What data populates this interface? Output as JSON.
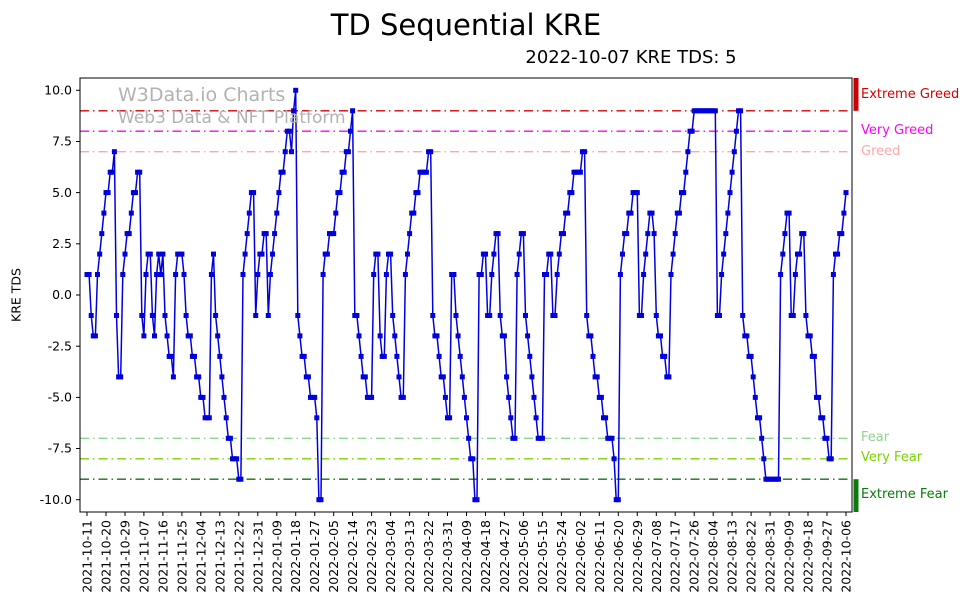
{
  "chart_data": {
    "type": "line",
    "title": "TD Sequential KRE",
    "subtitle": "2022-10-07 KRE TDS: 5",
    "xlabel": "",
    "ylabel": "KRE TDS",
    "grid": false,
    "legend": "none",
    "watermarks": [
      "W3Data.io Charts",
      "Web3 Data & NFT Platform"
    ],
    "ylim": [
      -10.6,
      10.6
    ],
    "y_ticks": [
      10.0,
      7.5,
      5.0,
      2.5,
      0.0,
      -2.5,
      -5.0,
      -7.5,
      -10.0
    ],
    "x_start": "2021-10-11",
    "x_unit": "days",
    "x_tick_interval_days": 9,
    "x_tick_labels": [
      "2021-10-11",
      "2021-10-20",
      "2021-10-29",
      "2021-11-07",
      "2021-11-16",
      "2021-11-25",
      "2021-12-04",
      "2021-12-13",
      "2021-12-22",
      "2021-12-31",
      "2022-01-09",
      "2022-01-18",
      "2022-01-27",
      "2022-02-05",
      "2022-02-14",
      "2022-02-23",
      "2022-03-04",
      "2022-03-13",
      "2022-03-22",
      "2022-03-31",
      "2022-04-09",
      "2022-04-18",
      "2022-04-27",
      "2022-05-06",
      "2022-05-15",
      "2022-05-24",
      "2022-06-02",
      "2022-06-11",
      "2022-06-20",
      "2022-06-29",
      "2022-07-08",
      "2022-07-17",
      "2022-07-26",
      "2022-08-04",
      "2022-08-13",
      "2022-08-22",
      "2022-08-31",
      "2022-09-09",
      "2022-09-18",
      "2022-09-27",
      "2022-10-06"
    ],
    "reference_lines": [
      {
        "label": "Extreme Greed",
        "y": 9,
        "color": "#d60000",
        "style": "dashdot"
      },
      {
        "label": "Very Greed",
        "y": 8,
        "color": "#ff00ff",
        "style": "dashdot"
      },
      {
        "label": "Greed",
        "y": 7,
        "color": "#ffa8a8",
        "style": "dashdot"
      },
      {
        "label": "Fear",
        "y": -7,
        "color": "#8ed88e",
        "style": "dashdot"
      },
      {
        "label": "Very Fear",
        "y": -8,
        "color": "#78d400",
        "style": "dashdot"
      },
      {
        "label": "Extreme Fear",
        "y": -9,
        "color": "#0a7a0a",
        "style": "dashdot"
      }
    ],
    "zone_bars": [
      {
        "name": "extreme-greed-bar",
        "color": "#cc0000",
        "from": 9,
        "to": 10.6
      },
      {
        "name": "extreme-fear-bar",
        "color": "#0a7a0a",
        "from": -10.6,
        "to": -9
      }
    ],
    "series": [
      {
        "name": "KRE TDS",
        "color": "#0000dd",
        "marker": "square",
        "values": [
          1,
          1,
          -1,
          -2,
          -2,
          1,
          2,
          3,
          4,
          5,
          5,
          6,
          6,
          7,
          -1,
          -4,
          -4,
          1,
          2,
          3,
          3,
          4,
          5,
          5,
          6,
          6,
          -1,
          -2,
          1,
          2,
          2,
          -1,
          -2,
          1,
          2,
          1,
          2,
          -1,
          -2,
          -3,
          -3,
          -4,
          1,
          2,
          2,
          2,
          1,
          -1,
          -2,
          -2,
          -3,
          -3,
          -4,
          -4,
          -5,
          -5,
          -6,
          -6,
          -6,
          1,
          2,
          -1,
          -2,
          -3,
          -4,
          -5,
          -6,
          -7,
          -7,
          -8,
          -8,
          -8,
          -9,
          -9,
          1,
          2,
          3,
          4,
          5,
          5,
          -1,
          1,
          2,
          2,
          3,
          3,
          -1,
          1,
          2,
          3,
          4,
          5,
          6,
          6,
          7,
          8,
          8,
          7,
          9,
          10,
          -1,
          -2,
          -3,
          -3,
          -4,
          -4,
          -5,
          -5,
          -5,
          -6,
          -10,
          -10,
          1,
          2,
          2,
          3,
          3,
          3,
          4,
          5,
          5,
          6,
          6,
          7,
          7,
          8,
          9,
          -1,
          -1,
          -2,
          -3,
          -4,
          -4,
          -5,
          -5,
          -5,
          1,
          2,
          2,
          -2,
          -3,
          -3,
          1,
          2,
          2,
          -1,
          -2,
          -3,
          -4,
          -5,
          -5,
          1,
          2,
          3,
          4,
          4,
          5,
          5,
          6,
          6,
          6,
          6,
          7,
          7,
          -1,
          -2,
          -2,
          -3,
          -4,
          -4,
          -5,
          -6,
          -6,
          1,
          1,
          -1,
          -2,
          -3,
          -4,
          -5,
          -6,
          -7,
          -8,
          -8,
          -10,
          -10,
          1,
          1,
          2,
          2,
          -1,
          -1,
          1,
          2,
          3,
          3,
          -1,
          -2,
          -2,
          -4,
          -5,
          -6,
          -7,
          -7,
          1,
          2,
          3,
          3,
          -1,
          -2,
          -3,
          -4,
          -5,
          -6,
          -7,
          -7,
          -7,
          1,
          1,
          2,
          2,
          -1,
          -1,
          1,
          2,
          3,
          3,
          4,
          4,
          5,
          5,
          6,
          6,
          6,
          6,
          7,
          7,
          -1,
          -2,
          -2,
          -3,
          -4,
          -4,
          -5,
          -5,
          -6,
          -6,
          -7,
          -7,
          -7,
          -8,
          -10,
          -10,
          1,
          2,
          3,
          3,
          4,
          4,
          5,
          5,
          5,
          -1,
          -1,
          1,
          2,
          3,
          4,
          4,
          3,
          -1,
          -2,
          -2,
          -3,
          -3,
          -4,
          -4,
          1,
          2,
          3,
          4,
          4,
          5,
          5,
          6,
          7,
          8,
          8,
          9,
          9,
          9,
          9,
          9,
          9,
          9,
          9,
          9,
          9,
          9,
          -1,
          -1,
          1,
          2,
          3,
          4,
          5,
          6,
          7,
          8,
          9,
          9,
          -1,
          -2,
          -2,
          -3,
          -3,
          -4,
          -5,
          -6,
          -6,
          -7,
          -8,
          -9,
          -9,
          -9,
          -9,
          -9,
          -9,
          -9,
          1,
          2,
          3,
          4,
          4,
          -1,
          -1,
          1,
          2,
          2,
          3,
          3,
          -1,
          -2,
          -2,
          -3,
          -3,
          -5,
          -5,
          -6,
          -6,
          -7,
          -7,
          -8,
          -8,
          1,
          2,
          2,
          3,
          3,
          4,
          5
        ]
      }
    ]
  }
}
